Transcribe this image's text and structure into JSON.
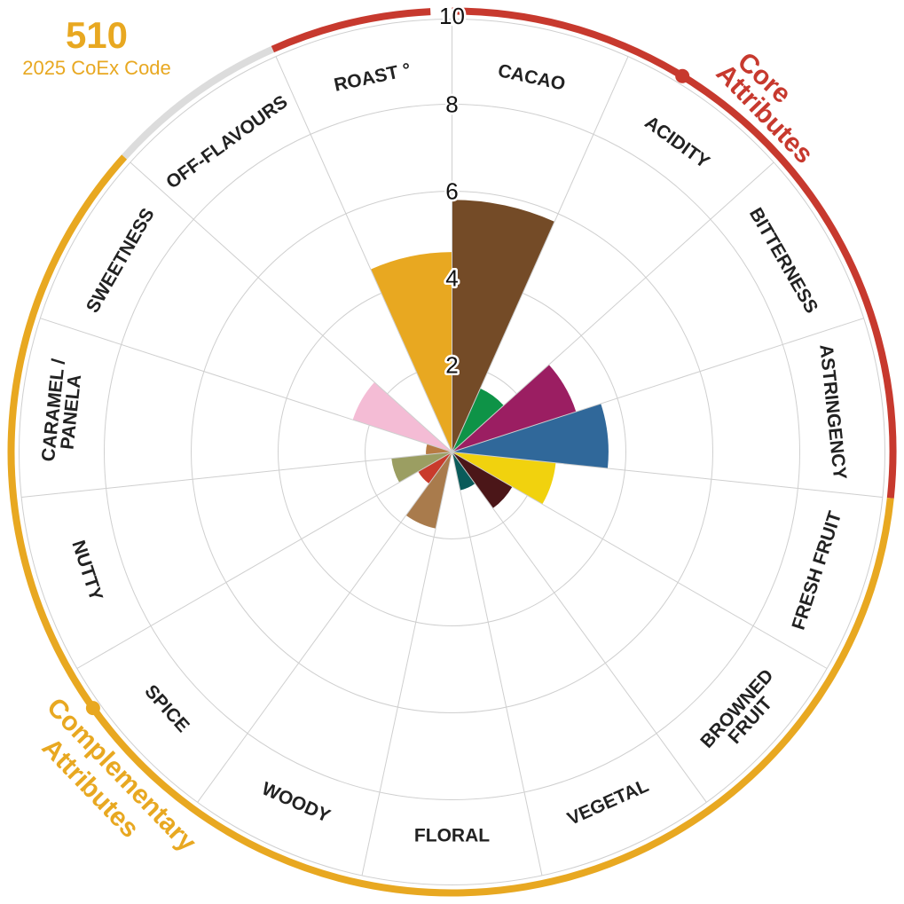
{
  "code": {
    "number": "510",
    "label": "2025 CoEx Code"
  },
  "chart_data": {
    "type": "polar-bar",
    "rmax": 10,
    "ticks": [
      "2",
      "4",
      "6",
      "8",
      "10"
    ],
    "categories": [
      {
        "label": "CACAO",
        "value": 5.8,
        "color": "#744b27"
      },
      {
        "label": "ACIDITY",
        "value": 1.6,
        "color": "#0e9347"
      },
      {
        "label": "BITTERNESS",
        "value": 3.0,
        "color": "#9b1e62"
      },
      {
        "label": "ASTRINGENCY",
        "value": 3.6,
        "color": "#30689a"
      },
      {
        "label": "FRESH FRUIT",
        "value": 2.4,
        "color": "#f1d20e"
      },
      {
        "label": [
          "BROWNED",
          "FRUIT"
        ],
        "value": 1.6,
        "color": "#4b1618"
      },
      {
        "label": "VEGETAL",
        "value": 0.9,
        "color": "#0a5b5a"
      },
      {
        "label": "FLORAL",
        "value": 0.0,
        "color": "#6d9b3f"
      },
      {
        "label": "WOODY",
        "value": 1.8,
        "color": "#a97b4c"
      },
      {
        "label": "SPICE",
        "value": 0.9,
        "color": "#c93b2c"
      },
      {
        "label": "NUTTY",
        "value": 1.4,
        "color": "#9b9e62"
      },
      {
        "label": [
          "CARAMEL /",
          "PANELA"
        ],
        "value": 0.6,
        "color": "#b77b43"
      },
      {
        "label": "SWEETNESS",
        "value": 2.4,
        "color": "#f4bcd5"
      },
      {
        "label": "OFF-FLAVOURS",
        "value": 0.0,
        "color": "#aaaaaa"
      },
      {
        "label": "ROAST °",
        "value": 4.6,
        "color": "#e8a821"
      }
    ]
  },
  "groups": {
    "core": {
      "lines": [
        "Core",
        "Attributes"
      ],
      "color": "#c7392e"
    },
    "complementary": {
      "lines": [
        "Complementary",
        "Attributes"
      ],
      "color": "#e8a821"
    },
    "neutral_color": "#dcdcdc"
  }
}
